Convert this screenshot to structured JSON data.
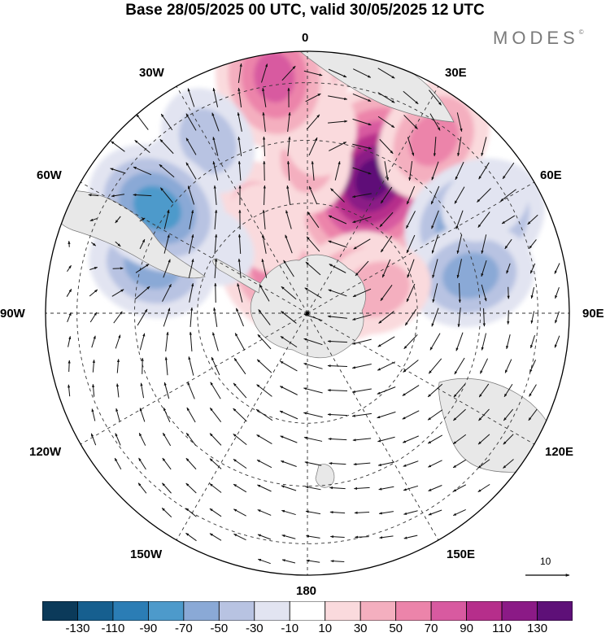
{
  "title": "Base 28/05/2025 00 UTC, valid 30/05/2025 12 UTC",
  "brand": {
    "text": "MODES",
    "mark": "©"
  },
  "longitude_labels": {
    "lon_0": "0",
    "lon_30e": "30E",
    "lon_60e": "60E",
    "lon_90e": "90E",
    "lon_120e": "120E",
    "lon_150e": "150E",
    "lon_180": "180",
    "lon_150w": "150W",
    "lon_120w": "120W",
    "lon_90w": "90W",
    "lon_60w": "60W",
    "lon_30w": "30W"
  },
  "vector_scale": {
    "label": "10"
  },
  "colorbar": {
    "tick_labels": [
      "-130",
      "-110",
      "-90",
      "-70",
      "-50",
      "-30",
      "-10",
      "10",
      "30",
      "50",
      "70",
      "90",
      "110",
      "130"
    ],
    "colors": [
      "#0b3a5a",
      "#165f8f",
      "#2b7db5",
      "#4d9acb",
      "#8aa9d6",
      "#b8c3e2",
      "#e2e4f1",
      "#ffffff",
      "#fadadd",
      "#f4afbf",
      "#ec84aa",
      "#d85aa0",
      "#b62e8b",
      "#8b1a86",
      "#5e1078"
    ]
  },
  "map": {
    "land_color": "#e8e8e8",
    "blobs": [
      {
        "c": 12,
        "a": 18,
        "b": 54
      },
      {
        "c": 14,
        "a": 26,
        "b": 57
      },
      {
        "c": 9,
        "a": 0,
        "b": 59
      },
      {
        "c": 8,
        "a": 4,
        "b": 70
      },
      {
        "c": 10,
        "a": -1,
        "b": 97
      },
      {
        "c": 11,
        "a": -8,
        "b": 91
      },
      {
        "c": 10,
        "a": 36,
        "b": 82
      },
      {
        "c": 3,
        "a": 61,
        "b": 73
      },
      {
        "c": 4,
        "a": 77,
        "b": 64
      },
      {
        "c": 3,
        "a": -43,
        "b": 60
      },
      {
        "c": 4,
        "a": -73,
        "b": 62
      },
      {
        "c": 10,
        "a": 59,
        "b": 20
      },
      {
        "c": 9,
        "a": 71,
        "b": 28
      },
      {
        "c": 10,
        "a": -39,
        "b": 19
      },
      {
        "c": 9,
        "a": -26,
        "b": 42
      },
      {
        "c": 8,
        "a": -26,
        "b": 36
      },
      {
        "c": 5,
        "a": -30,
        "b": 76
      },
      {
        "c": 6,
        "a": 58,
        "b": 80
      },
      {
        "c": 6,
        "a": -55,
        "b": 45
      },
      {
        "c": 3,
        "a": -55,
        "b": 70
      }
    ]
  }
}
